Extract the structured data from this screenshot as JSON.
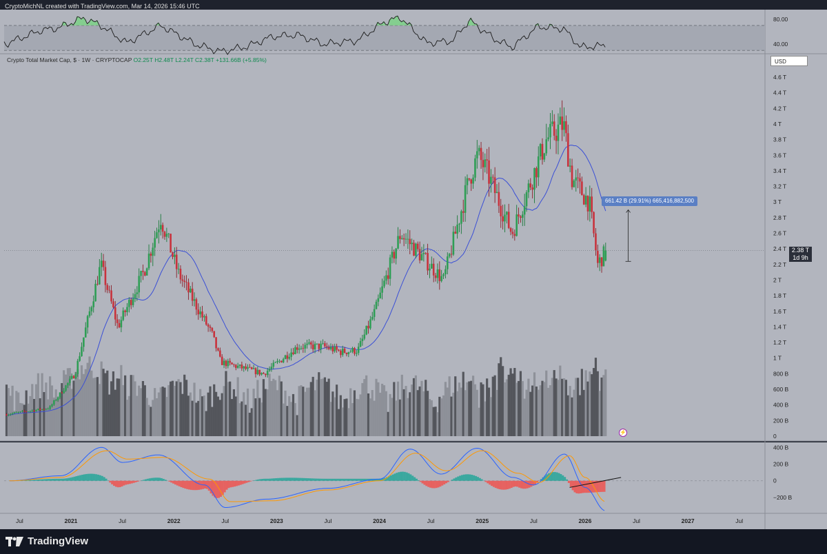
{
  "header": {
    "credit": "CryptoMichNL created with TradingView.com, Mar 14, 2026 15:46 UTC"
  },
  "legend": {
    "symbol": "Crypto Total Market Cap, $ · 1W · CRYPTOCAP",
    "open": "O2.25T",
    "high": "H2.48T",
    "low": "L2.24T",
    "close": "C2.38T",
    "change": "+131.66B (+5.85%)"
  },
  "currency_button": "USD",
  "price_tag": {
    "value": "2.38 T",
    "countdown": "1d 9h"
  },
  "measure_label": "661.42 B (29.91%) 665,416,882,500",
  "footer": {
    "brand": "TradingView"
  },
  "colors": {
    "up": "#26a69a",
    "down": "#ef5350",
    "ma": "#3a4fd6",
    "macd": "#2962ff",
    "signal": "#ff9800",
    "rsi_fill": "#7ed08a",
    "measure": "#5a7fc4"
  },
  "chart_data": [
    {
      "type": "line",
      "title": "RSI",
      "y_ticks": [
        {
          "value": 40,
          "label": "40.00"
        },
        {
          "value": 80,
          "label": "80.00"
        }
      ],
      "ylim": [
        28,
        92
      ],
      "x": [
        "2020-05",
        "2020-09",
        "2020-11",
        "2021-02",
        "2021-04",
        "2021-07",
        "2021-11",
        "2022-03",
        "2022-06",
        "2022-09",
        "2022-12",
        "2023-03",
        "2023-06",
        "2023-10",
        "2024-01",
        "2024-03",
        "2024-06",
        "2024-09",
        "2024-11",
        "2025-02",
        "2025-04",
        "2025-07",
        "2025-10",
        "2025-12",
        "2026-03"
      ],
      "values": [
        41,
        62,
        66,
        82,
        70,
        42,
        70,
        40,
        28,
        36,
        52,
        55,
        40,
        46,
        75,
        83,
        42,
        45,
        78,
        48,
        35,
        68,
        65,
        35,
        38
      ]
    },
    {
      "type": "candlestick",
      "title": "Crypto Total Market Cap, $ · 1W · CRYPTOCAP",
      "y_tick_labels": [
        "0",
        "200 B",
        "400 B",
        "600 B",
        "800 B",
        "1 T",
        "1.2 T",
        "1.4 T",
        "1.6 T",
        "1.8 T",
        "2 T",
        "2.2 T",
        "2.4 T",
        "2.6 T",
        "2.8 T",
        "3 T",
        "3.2 T",
        "3.4 T",
        "3.6 T",
        "3.8 T",
        "4 T",
        "4.2 T",
        "4.4 T",
        "4.6 T"
      ],
      "x_tick_labels": [
        "Jul",
        "2021",
        "Jul",
        "2022",
        "Jul",
        "2023",
        "Jul",
        "2024",
        "Jul",
        "2025",
        "Jul",
        "2026",
        "Jul",
        "2027",
        "Jul"
      ],
      "ylim_trillions": [
        0.25,
        4.8
      ],
      "path_dates": [
        "2020-05",
        "2020-10",
        "2021-01",
        "2021-04",
        "2021-06",
        "2021-09",
        "2021-11",
        "2022-01",
        "2022-05",
        "2022-06",
        "2022-11",
        "2023-03",
        "2023-06",
        "2023-08",
        "2023-10",
        "2023-12",
        "2024-03",
        "2024-08",
        "2024-11",
        "2024-12",
        "2025-01",
        "2025-04",
        "2025-06",
        "2025-08",
        "2025-10",
        "2025-11",
        "2026-01",
        "2026-02",
        "2026-03"
      ],
      "path_close_trillions": [
        0.28,
        0.36,
        0.8,
        2.2,
        1.4,
        2.1,
        2.8,
        2.1,
        1.3,
        0.95,
        0.8,
        1.15,
        1.15,
        1.08,
        1.1,
        1.6,
        2.6,
        2.0,
        3.3,
        3.6,
        3.4,
        2.6,
        3.2,
        3.8,
        4.0,
        3.3,
        3.0,
        2.2,
        2.38
      ],
      "last": {
        "open": 2.25,
        "high": 2.48,
        "low": 2.24,
        "close": 2.38
      },
      "ma_line": "20-period moving average (blue)",
      "volume_note": "Volume bars in grey along the bottom of the price pane",
      "measure": {
        "from": 2.24,
        "to": 2.9,
        "label": "661.42 B (29.91%) 665,416,882,500"
      }
    },
    {
      "type": "line",
      "title": "MACD",
      "y_ticks": [
        {
          "value": 400,
          "label": "400 B"
        },
        {
          "value": 200,
          "label": "200 B"
        },
        {
          "value": 0,
          "label": "0"
        },
        {
          "value": -200,
          "label": "−200 B"
        }
      ],
      "ylim": [
        -390,
        460
      ],
      "macd_points": [
        [
          2020.4,
          0
        ],
        [
          2020.9,
          60
        ],
        [
          2021.3,
          400
        ],
        [
          2021.5,
          220
        ],
        [
          2021.85,
          310
        ],
        [
          2022.3,
          -50
        ],
        [
          2022.5,
          -320
        ],
        [
          2022.9,
          -220
        ],
        [
          2023.5,
          -90
        ],
        [
          2024.0,
          20
        ],
        [
          2024.3,
          380
        ],
        [
          2024.6,
          80
        ],
        [
          2024.95,
          390
        ],
        [
          2025.3,
          40
        ],
        [
          2025.5,
          -50
        ],
        [
          2025.8,
          320
        ],
        [
          2026.0,
          -80
        ],
        [
          2026.2,
          -360
        ]
      ],
      "signal_points": [
        [
          2020.4,
          0
        ],
        [
          2020.9,
          40
        ],
        [
          2021.35,
          360
        ],
        [
          2021.55,
          260
        ],
        [
          2021.9,
          280
        ],
        [
          2022.35,
          20
        ],
        [
          2022.55,
          -250
        ],
        [
          2022.95,
          -240
        ],
        [
          2023.5,
          -110
        ],
        [
          2024.0,
          0
        ],
        [
          2024.35,
          330
        ],
        [
          2024.65,
          120
        ],
        [
          2025.0,
          360
        ],
        [
          2025.35,
          90
        ],
        [
          2025.55,
          -20
        ],
        [
          2025.85,
          300
        ],
        [
          2026.0,
          40
        ],
        [
          2026.2,
          -250
        ]
      ],
      "trendline_note": "Bullish divergence line drawn at the end"
    }
  ]
}
